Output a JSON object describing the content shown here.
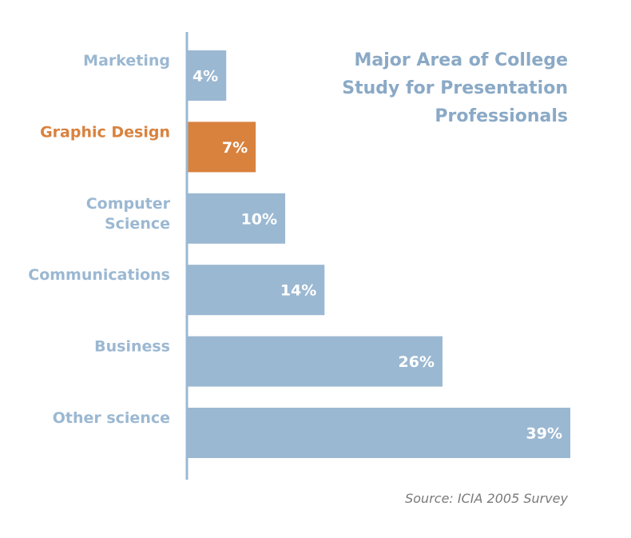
{
  "chart_data": {
    "type": "bar",
    "orientation": "horizontal",
    "title_lines": [
      "Major Area of College",
      "Study for Presentation",
      "Professionals"
    ],
    "source": "Source: ICIA 2005 Survey",
    "categories": [
      [
        "Marketing"
      ],
      [
        "Graphic Design"
      ],
      [
        "Computer",
        "Science"
      ],
      [
        "Communications"
      ],
      [
        "Business"
      ],
      [
        "Other science"
      ]
    ],
    "values": [
      4,
      7,
      10,
      14,
      26,
      39
    ],
    "value_labels": [
      "4%",
      "7%",
      "10%",
      "14%",
      "26%",
      "39%"
    ],
    "highlight_index": 1,
    "xlim": [
      0,
      39
    ],
    "grid": false,
    "legend": "none",
    "colors": {
      "bar": "#9bb8d2",
      "highlight": "#d9823e",
      "label": "#9bb8d2",
      "label_highlight": "#d9823e",
      "axis": "#9bb8d2",
      "title": "#8aa9c6",
      "source": "#7a7a7a"
    }
  }
}
